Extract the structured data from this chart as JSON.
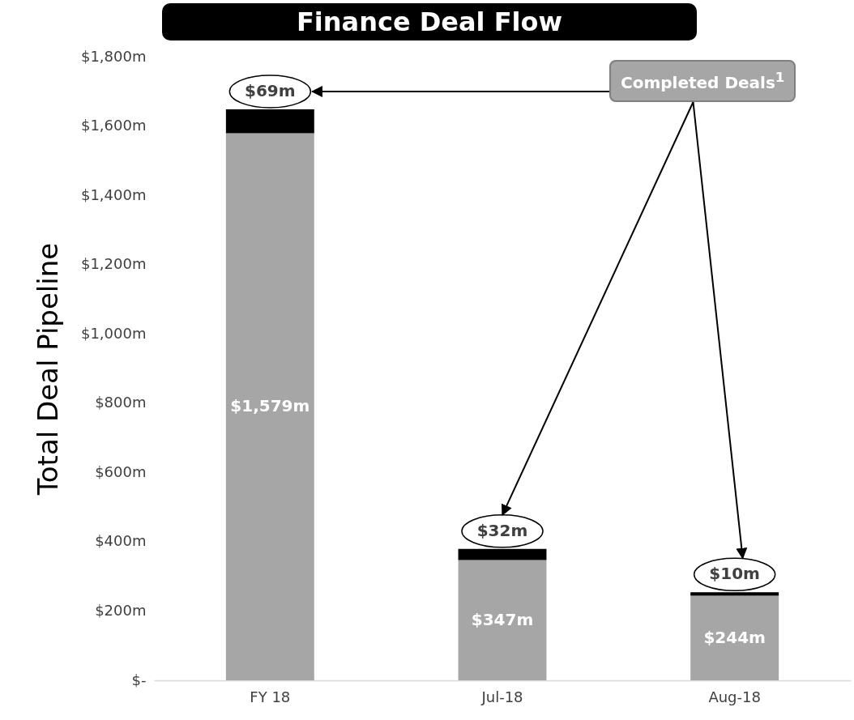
{
  "chart_data": {
    "type": "bar",
    "title": "Finance Deal Flow",
    "ylabel": "Total Deal Pipeline",
    "categories": [
      "FY 18",
      "Jul-18",
      "Aug-18"
    ],
    "stacked": true,
    "series": [
      {
        "color": "#a6a6a6",
        "values": [
          1579,
          347,
          244
        ],
        "value_labels": [
          "$1,579m",
          "$347m",
          "$244m"
        ]
      },
      {
        "color": "#000000",
        "values": [
          69,
          32,
          10
        ],
        "value_labels": [
          "$69m",
          "$32m",
          "$10m"
        ]
      }
    ],
    "ylim": [
      0,
      1800
    ],
    "yticks": [
      {
        "value": 0,
        "label": "$-"
      },
      {
        "value": 200,
        "label": "$200m"
      },
      {
        "value": 400,
        "label": "$400m"
      },
      {
        "value": 600,
        "label": "$600m"
      },
      {
        "value": 800,
        "label": "$800m"
      },
      {
        "value": 1000,
        "label": "$1,000m"
      },
      {
        "value": 1200,
        "label": "$1,200m"
      },
      {
        "value": 1400,
        "label": "$1,400m"
      },
      {
        "value": 1600,
        "label": "$1,600m"
      },
      {
        "value": 1800,
        "label": "$1,800m"
      }
    ],
    "grid": false,
    "legend": false,
    "annotations": [
      "Completed Deals$^{1}$"
    ]
  }
}
